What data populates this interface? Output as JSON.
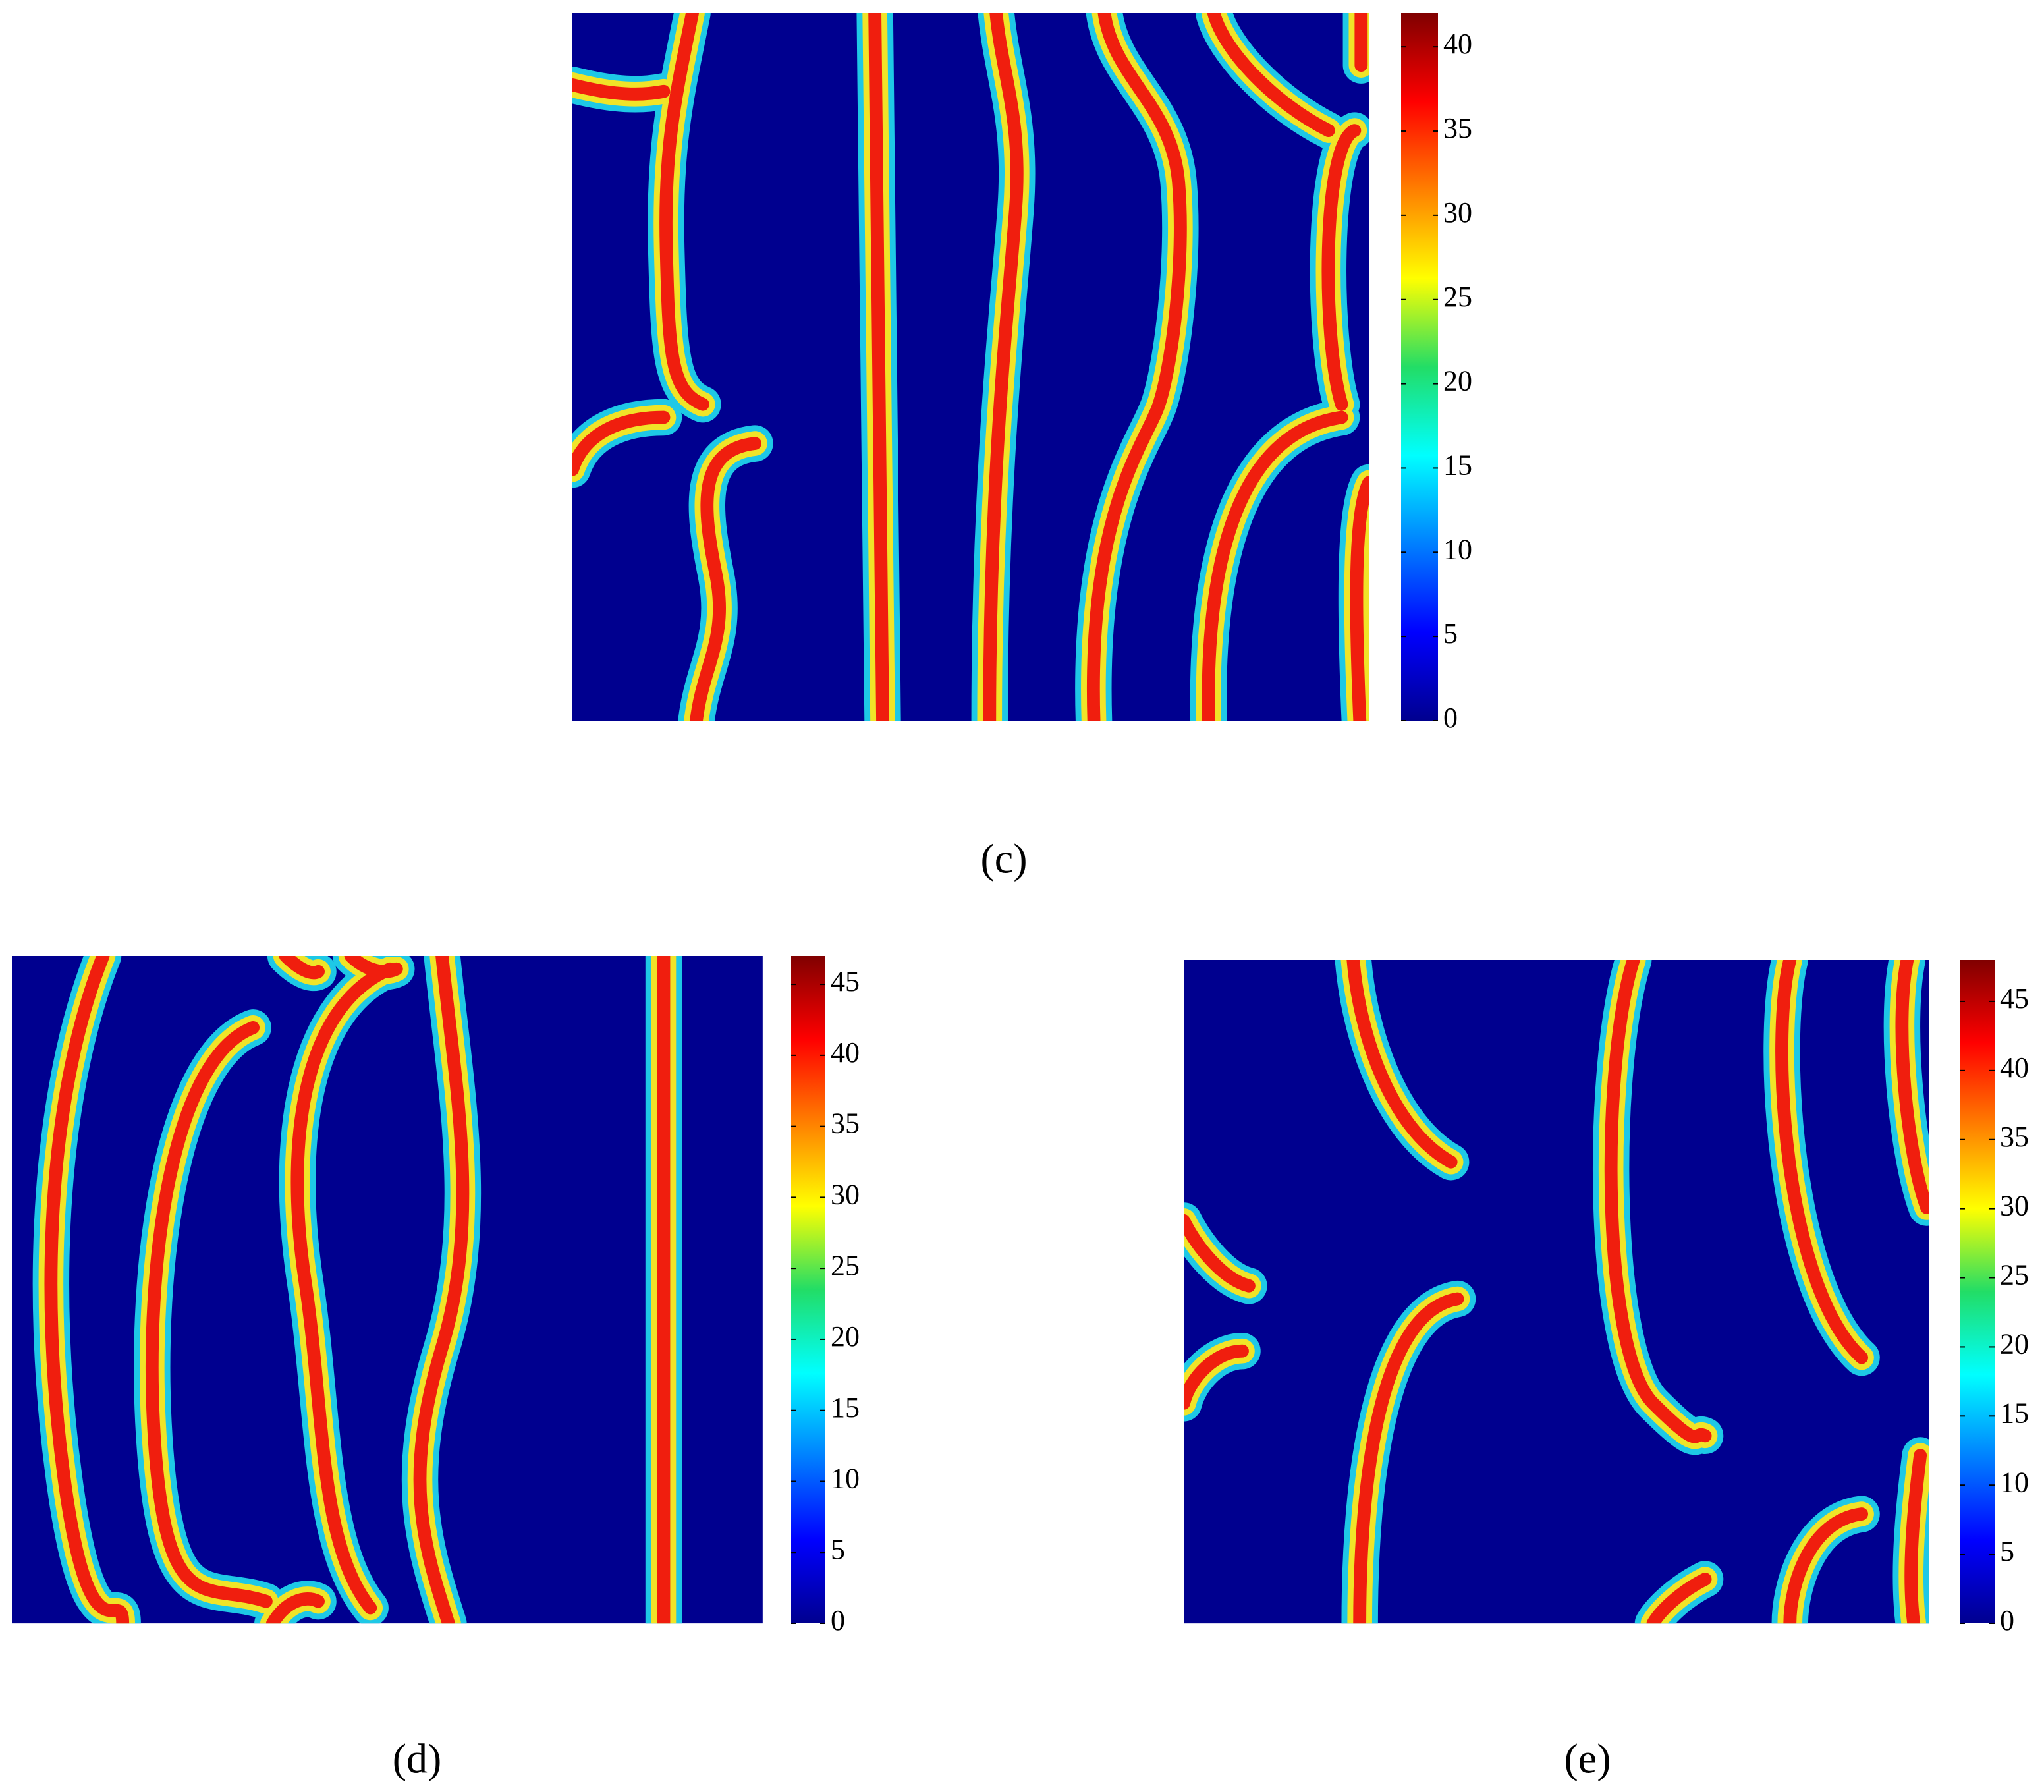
{
  "chart_data": [
    {
      "type": "heatmap",
      "label": "(c)",
      "colormap": "jet",
      "zlim": [
        0,
        42
      ],
      "zticks": [
        0,
        5,
        10,
        15,
        20,
        25,
        30,
        35,
        40
      ]
    },
    {
      "type": "heatmap",
      "label": "(d)",
      "colormap": "jet",
      "zlim": [
        0,
        47
      ],
      "zticks": [
        0,
        5,
        10,
        15,
        20,
        25,
        30,
        35,
        40,
        45
      ]
    },
    {
      "type": "heatmap",
      "label": "(e)",
      "colormap": "jet",
      "zlim": [
        0,
        48
      ],
      "zticks": [
        0,
        5,
        10,
        15,
        20,
        25,
        30,
        35,
        40,
        45
      ]
    }
  ]
}
